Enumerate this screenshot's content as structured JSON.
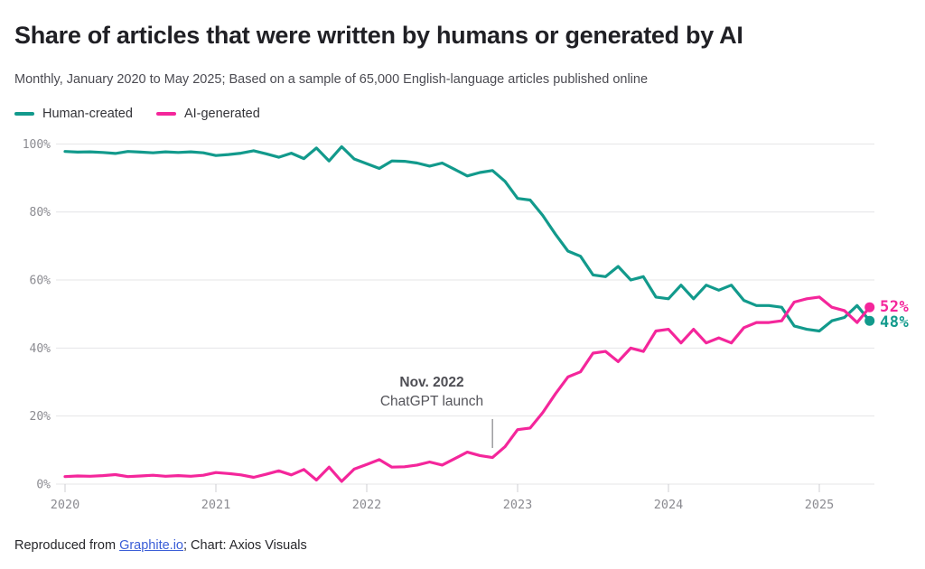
{
  "header": {
    "title": "Share of articles that were written by humans or generated by AI",
    "subtitle": "Monthly, January 2020 to May 2025; Based on a sample of 65,000 English-language articles published online"
  },
  "legend": {
    "items": [
      {
        "label": "Human-created",
        "color": "#129a8c"
      },
      {
        "label": "AI-generated",
        "color": "#f4269b"
      }
    ]
  },
  "annotation": {
    "line1": "Nov. 2022",
    "line2": "ChatGPT launch"
  },
  "footer": {
    "prefix": "Reproduced from ",
    "link_text": "Graphite.io",
    "suffix": "; Chart: Axios Visuals"
  },
  "chart_data": {
    "type": "line",
    "title": "Share of articles that were written by humans or generated by AI",
    "subtitle": "Monthly, January 2020 to May 2025; Based on a sample of 65,000 English-language articles published online",
    "x_unit": "month",
    "x_range": [
      "2020-01",
      "2025-05"
    ],
    "ylim": [
      0,
      100
    ],
    "grid": "horizontal",
    "legend_position": "top-left",
    "y_tick_labels": [
      "0%",
      "20%",
      "40%",
      "60%",
      "80%",
      "100%"
    ],
    "x_tick_labels": [
      "2020",
      "2021",
      "2022",
      "2023",
      "2024",
      "2025"
    ],
    "months": [
      "2020-01",
      "2020-02",
      "2020-03",
      "2020-04",
      "2020-05",
      "2020-06",
      "2020-07",
      "2020-08",
      "2020-09",
      "2020-10",
      "2020-11",
      "2020-12",
      "2021-01",
      "2021-02",
      "2021-03",
      "2021-04",
      "2021-05",
      "2021-06",
      "2021-07",
      "2021-08",
      "2021-09",
      "2021-10",
      "2021-11",
      "2021-12",
      "2022-01",
      "2022-02",
      "2022-03",
      "2022-04",
      "2022-05",
      "2022-06",
      "2022-07",
      "2022-08",
      "2022-09",
      "2022-10",
      "2022-11",
      "2022-12",
      "2023-01",
      "2023-02",
      "2023-03",
      "2023-04",
      "2023-05",
      "2023-06",
      "2023-07",
      "2023-08",
      "2023-09",
      "2023-10",
      "2023-11",
      "2023-12",
      "2024-01",
      "2024-02",
      "2024-03",
      "2024-04",
      "2024-05",
      "2024-06",
      "2024-07",
      "2024-08",
      "2024-09",
      "2024-10",
      "2024-11",
      "2024-12",
      "2025-01",
      "2025-02",
      "2025-03",
      "2025-04",
      "2025-05"
    ],
    "series": [
      {
        "name": "Human-created",
        "color": "#129a8c",
        "values": [
          97.8,
          97.6,
          97.7,
          97.5,
          97.2,
          97.8,
          97.6,
          97.4,
          97.7,
          97.5,
          97.7,
          97.4,
          96.6,
          96.9,
          97.3,
          98.0,
          97.1,
          96.1,
          97.3,
          95.7,
          98.8,
          95.0,
          99.2,
          95.6,
          94.2,
          92.8,
          95.0,
          94.9,
          94.4,
          93.5,
          94.4,
          92.5,
          90.6,
          91.6,
          92.2,
          89.0,
          84.0,
          83.5,
          79.0,
          73.5,
          68.5,
          67.0,
          61.5,
          61.0,
          64.0,
          60.0,
          61.0,
          55.0,
          54.5,
          58.5,
          54.5,
          58.5,
          57.0,
          58.5,
          54.0,
          52.5,
          52.5,
          52.0,
          46.5,
          45.5,
          45.0,
          48.0,
          49.0,
          52.5,
          48.0
        ]
      },
      {
        "name": "AI-generated",
        "color": "#f4269b",
        "values": [
          2.2,
          2.4,
          2.3,
          2.5,
          2.8,
          2.2,
          2.4,
          2.6,
          2.3,
          2.5,
          2.3,
          2.6,
          3.4,
          3.1,
          2.7,
          2.0,
          2.9,
          3.9,
          2.7,
          4.3,
          1.2,
          5.0,
          0.8,
          4.4,
          5.8,
          7.2,
          5.0,
          5.1,
          5.6,
          6.5,
          5.6,
          7.5,
          9.4,
          8.4,
          7.8,
          11.0,
          16.0,
          16.5,
          21.0,
          26.5,
          31.5,
          33.0,
          38.5,
          39.0,
          36.0,
          40.0,
          39.0,
          45.0,
          45.5,
          41.5,
          45.5,
          41.5,
          43.0,
          41.5,
          46.0,
          47.5,
          47.5,
          48.0,
          53.5,
          54.5,
          55.0,
          52.0,
          51.0,
          47.5,
          52.0
        ]
      }
    ],
    "end_labels": [
      {
        "series": "AI-generated",
        "text": "52%"
      },
      {
        "series": "Human-created",
        "text": "48%"
      }
    ],
    "annotation": {
      "label_lines": [
        "Nov. 2022",
        "ChatGPT launch"
      ],
      "x_month": "2022-11"
    }
  }
}
